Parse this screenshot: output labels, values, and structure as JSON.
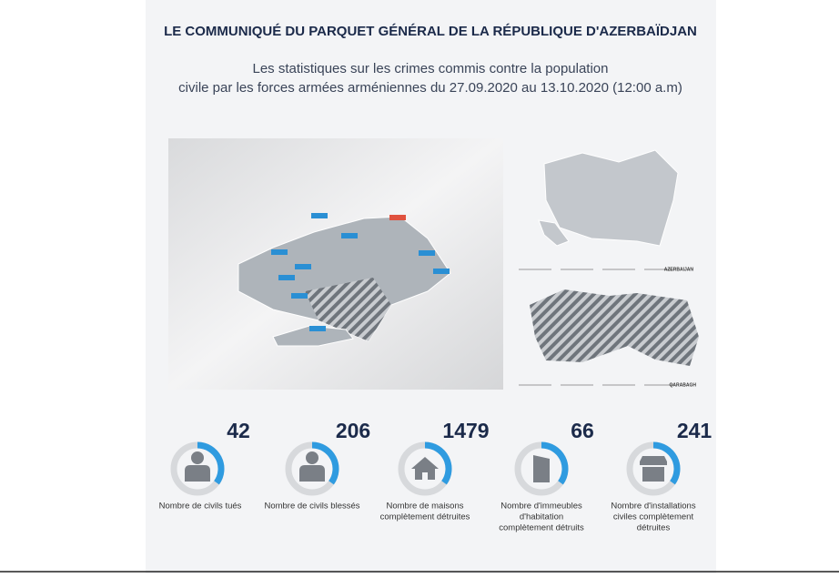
{
  "header": {
    "title": "LE COMMUNIQUÉ DU PARQUET GÉNÉRAL DE LA RÉPUBLIQUE D'AZERBAÏDJAN",
    "subtitle": [
      "Les statistiques sur les crimes commis contre la population",
      "civile par les forces armées arméniennes du 27.09.2020 au 13.10.2020 (12:00 a.m)"
    ]
  },
  "maps": {
    "country_label": "AZERBAIJAN",
    "region_label": "QARABAGH"
  },
  "stats": [
    {
      "value": 42,
      "label": [
        "Nombre de civils tués"
      ]
    },
    {
      "value": 206,
      "label": [
        "Nombre de civils blessés"
      ]
    },
    {
      "value": 1479,
      "label": [
        "Nombre de maisons",
        "complètement détruites"
      ]
    },
    {
      "value": 66,
      "label": [
        "Nombre d'immeubles",
        "d'habitation",
        "complètement détruits"
      ]
    },
    {
      "value": 241,
      "label": [
        "Nombre d'installations",
        "civiles complètement",
        "détruites"
      ]
    }
  ]
}
